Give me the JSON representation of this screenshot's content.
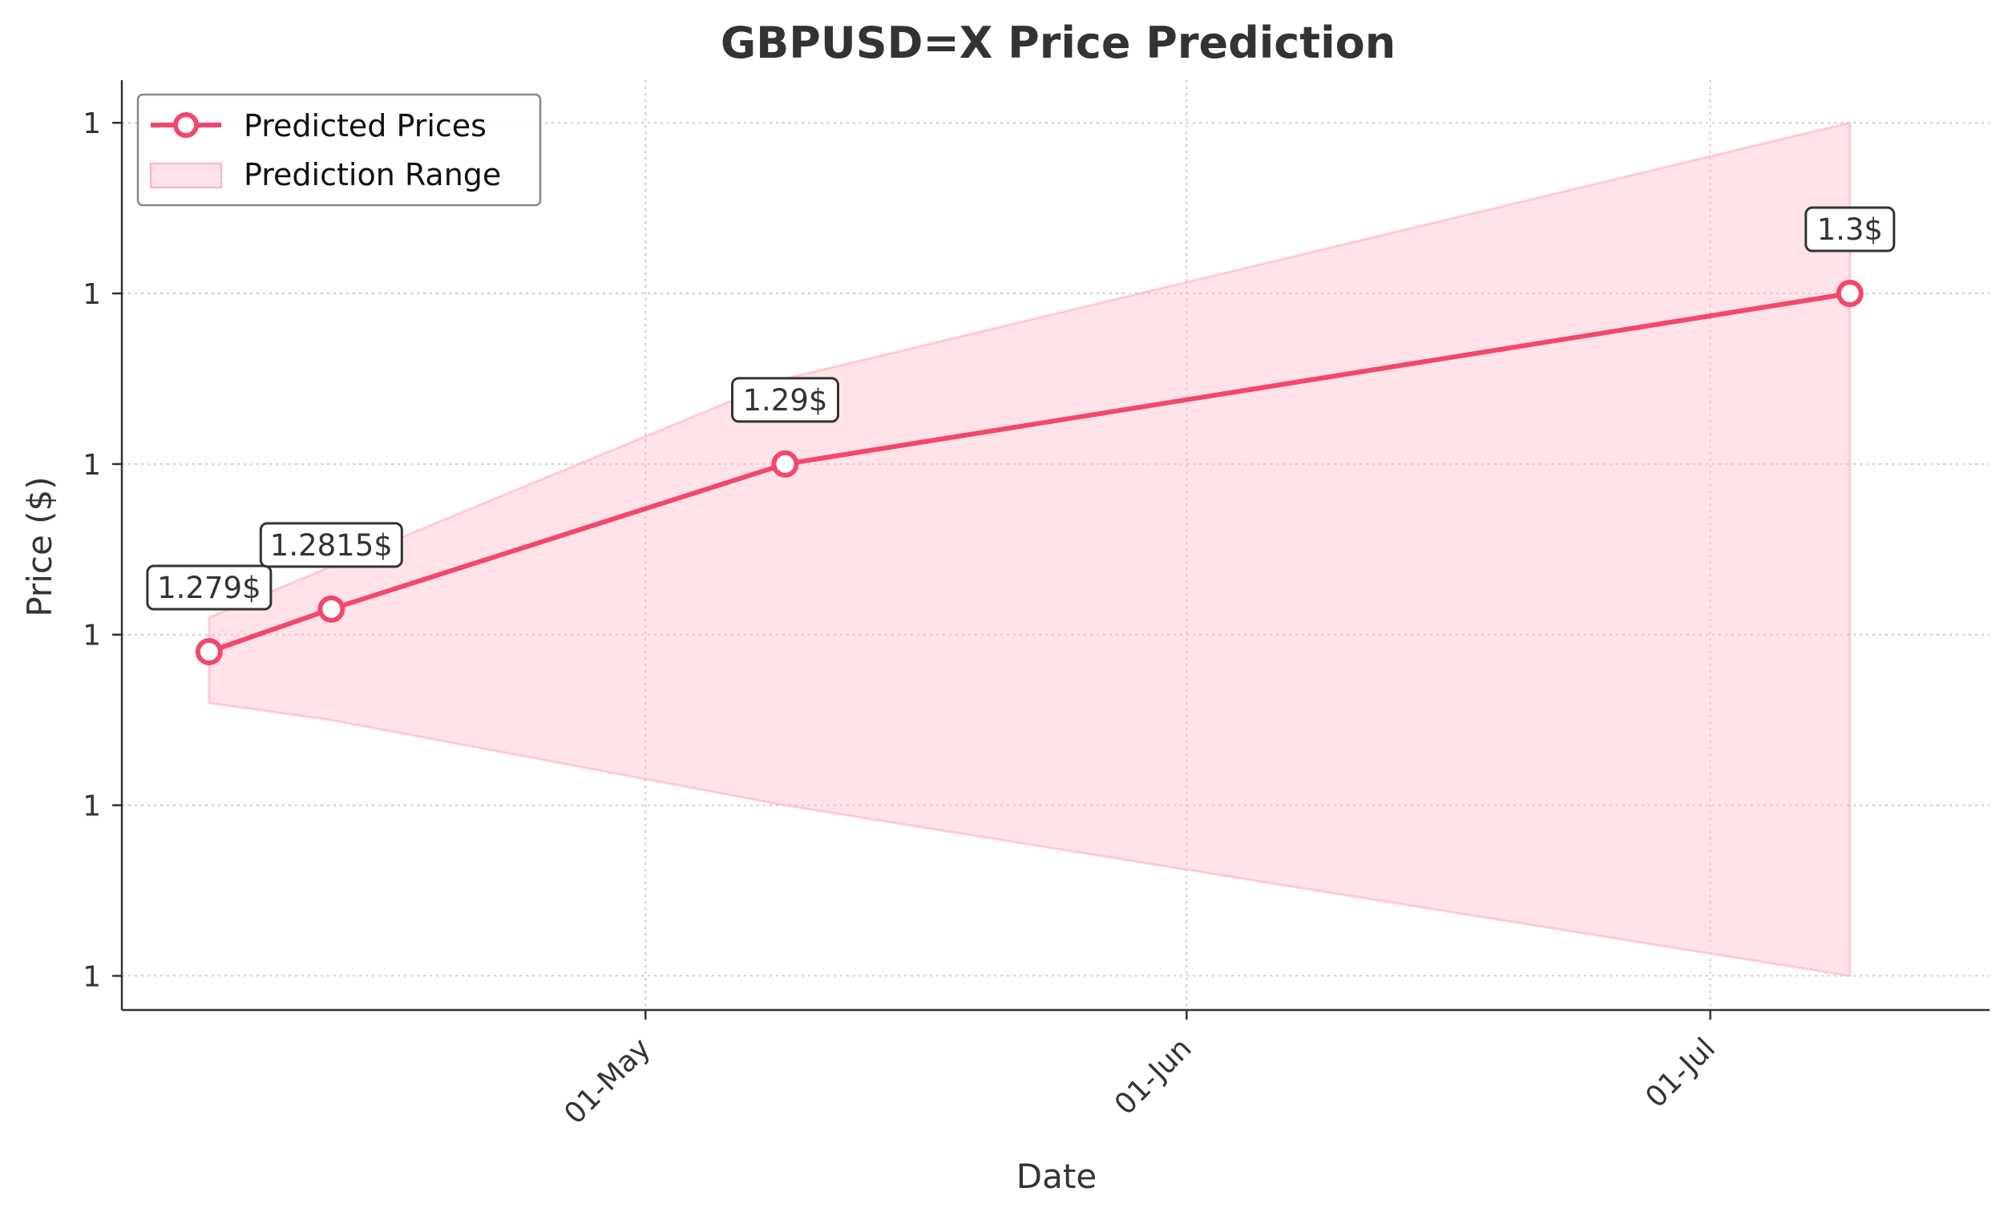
{
  "chart_data": {
    "type": "line",
    "title": "GBPUSD=X Price Prediction",
    "xlabel": "Date",
    "ylabel": "Price ($)",
    "x_tick_labels": [
      "01-May",
      "01-Jun",
      "01-Jul"
    ],
    "y_tick_labels": [
      "1",
      "1",
      "1",
      "1",
      "1",
      "1"
    ],
    "grid": true,
    "legend_position": "top-left",
    "x": [
      "2024-04-06",
      "2024-04-13",
      "2024-05-09",
      "2024-07-09"
    ],
    "series": [
      {
        "name": "Predicted Prices",
        "values": [
          1.279,
          1.2815,
          1.29,
          1.3
        ],
        "labels": [
          "1.279$",
          "1.2815$",
          "1.29$",
          "1.3$"
        ],
        "color": "#f4476b"
      },
      {
        "name": "Prediction Range",
        "type": "band",
        "x": [
          "2024-04-06",
          "2024-04-13",
          "2024-05-09",
          "2024-07-09"
        ],
        "lower": [
          1.276,
          1.275,
          1.27,
          1.26
        ],
        "upper": [
          1.281,
          1.284,
          1.295,
          1.31
        ],
        "color": "#ffc0cb"
      }
    ]
  }
}
